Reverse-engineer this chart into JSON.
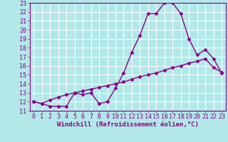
{
  "xlabel": "Windchill (Refroidissement éolien,°C)",
  "background_color": "#b2e8e8",
  "line_color": "#880088",
  "xlim": [
    -0.5,
    23.5
  ],
  "ylim": [
    11,
    23
  ],
  "xticks": [
    0,
    1,
    2,
    3,
    4,
    5,
    6,
    7,
    8,
    9,
    10,
    11,
    12,
    13,
    14,
    15,
    16,
    17,
    18,
    19,
    20,
    21,
    22,
    23
  ],
  "yticks": [
    11,
    12,
    13,
    14,
    15,
    16,
    17,
    18,
    19,
    20,
    21,
    22,
    23
  ],
  "grid_color": "#ffffff",
  "line1_x": [
    0,
    1,
    2,
    3,
    4,
    5,
    6,
    7,
    8,
    9,
    10,
    11,
    12,
    13,
    14,
    15,
    16,
    17,
    18,
    19,
    20,
    21,
    22,
    23
  ],
  "line1_y": [
    12.0,
    11.8,
    11.5,
    11.5,
    11.5,
    13.0,
    12.8,
    13.0,
    11.8,
    12.0,
    13.5,
    15.2,
    17.5,
    19.4,
    21.8,
    21.8,
    23.0,
    23.0,
    21.8,
    19.0,
    17.2,
    17.8,
    16.8,
    15.2
  ],
  "line2_x": [
    0,
    1,
    2,
    3,
    4,
    5,
    6,
    7,
    8,
    9,
    10,
    11,
    12,
    13,
    14,
    15,
    16,
    17,
    18,
    19,
    20,
    21,
    22,
    23
  ],
  "line2_y": [
    12.0,
    11.8,
    12.2,
    12.5,
    12.8,
    13.0,
    13.2,
    13.4,
    13.6,
    13.8,
    14.0,
    14.2,
    14.5,
    14.8,
    15.0,
    15.2,
    15.5,
    15.8,
    16.0,
    16.3,
    16.5,
    16.8,
    15.8,
    15.3
  ],
  "marker": "D",
  "markersize": 2.5,
  "linewidth": 1.0,
  "tick_fontsize": 6,
  "label_fontsize": 6.5
}
